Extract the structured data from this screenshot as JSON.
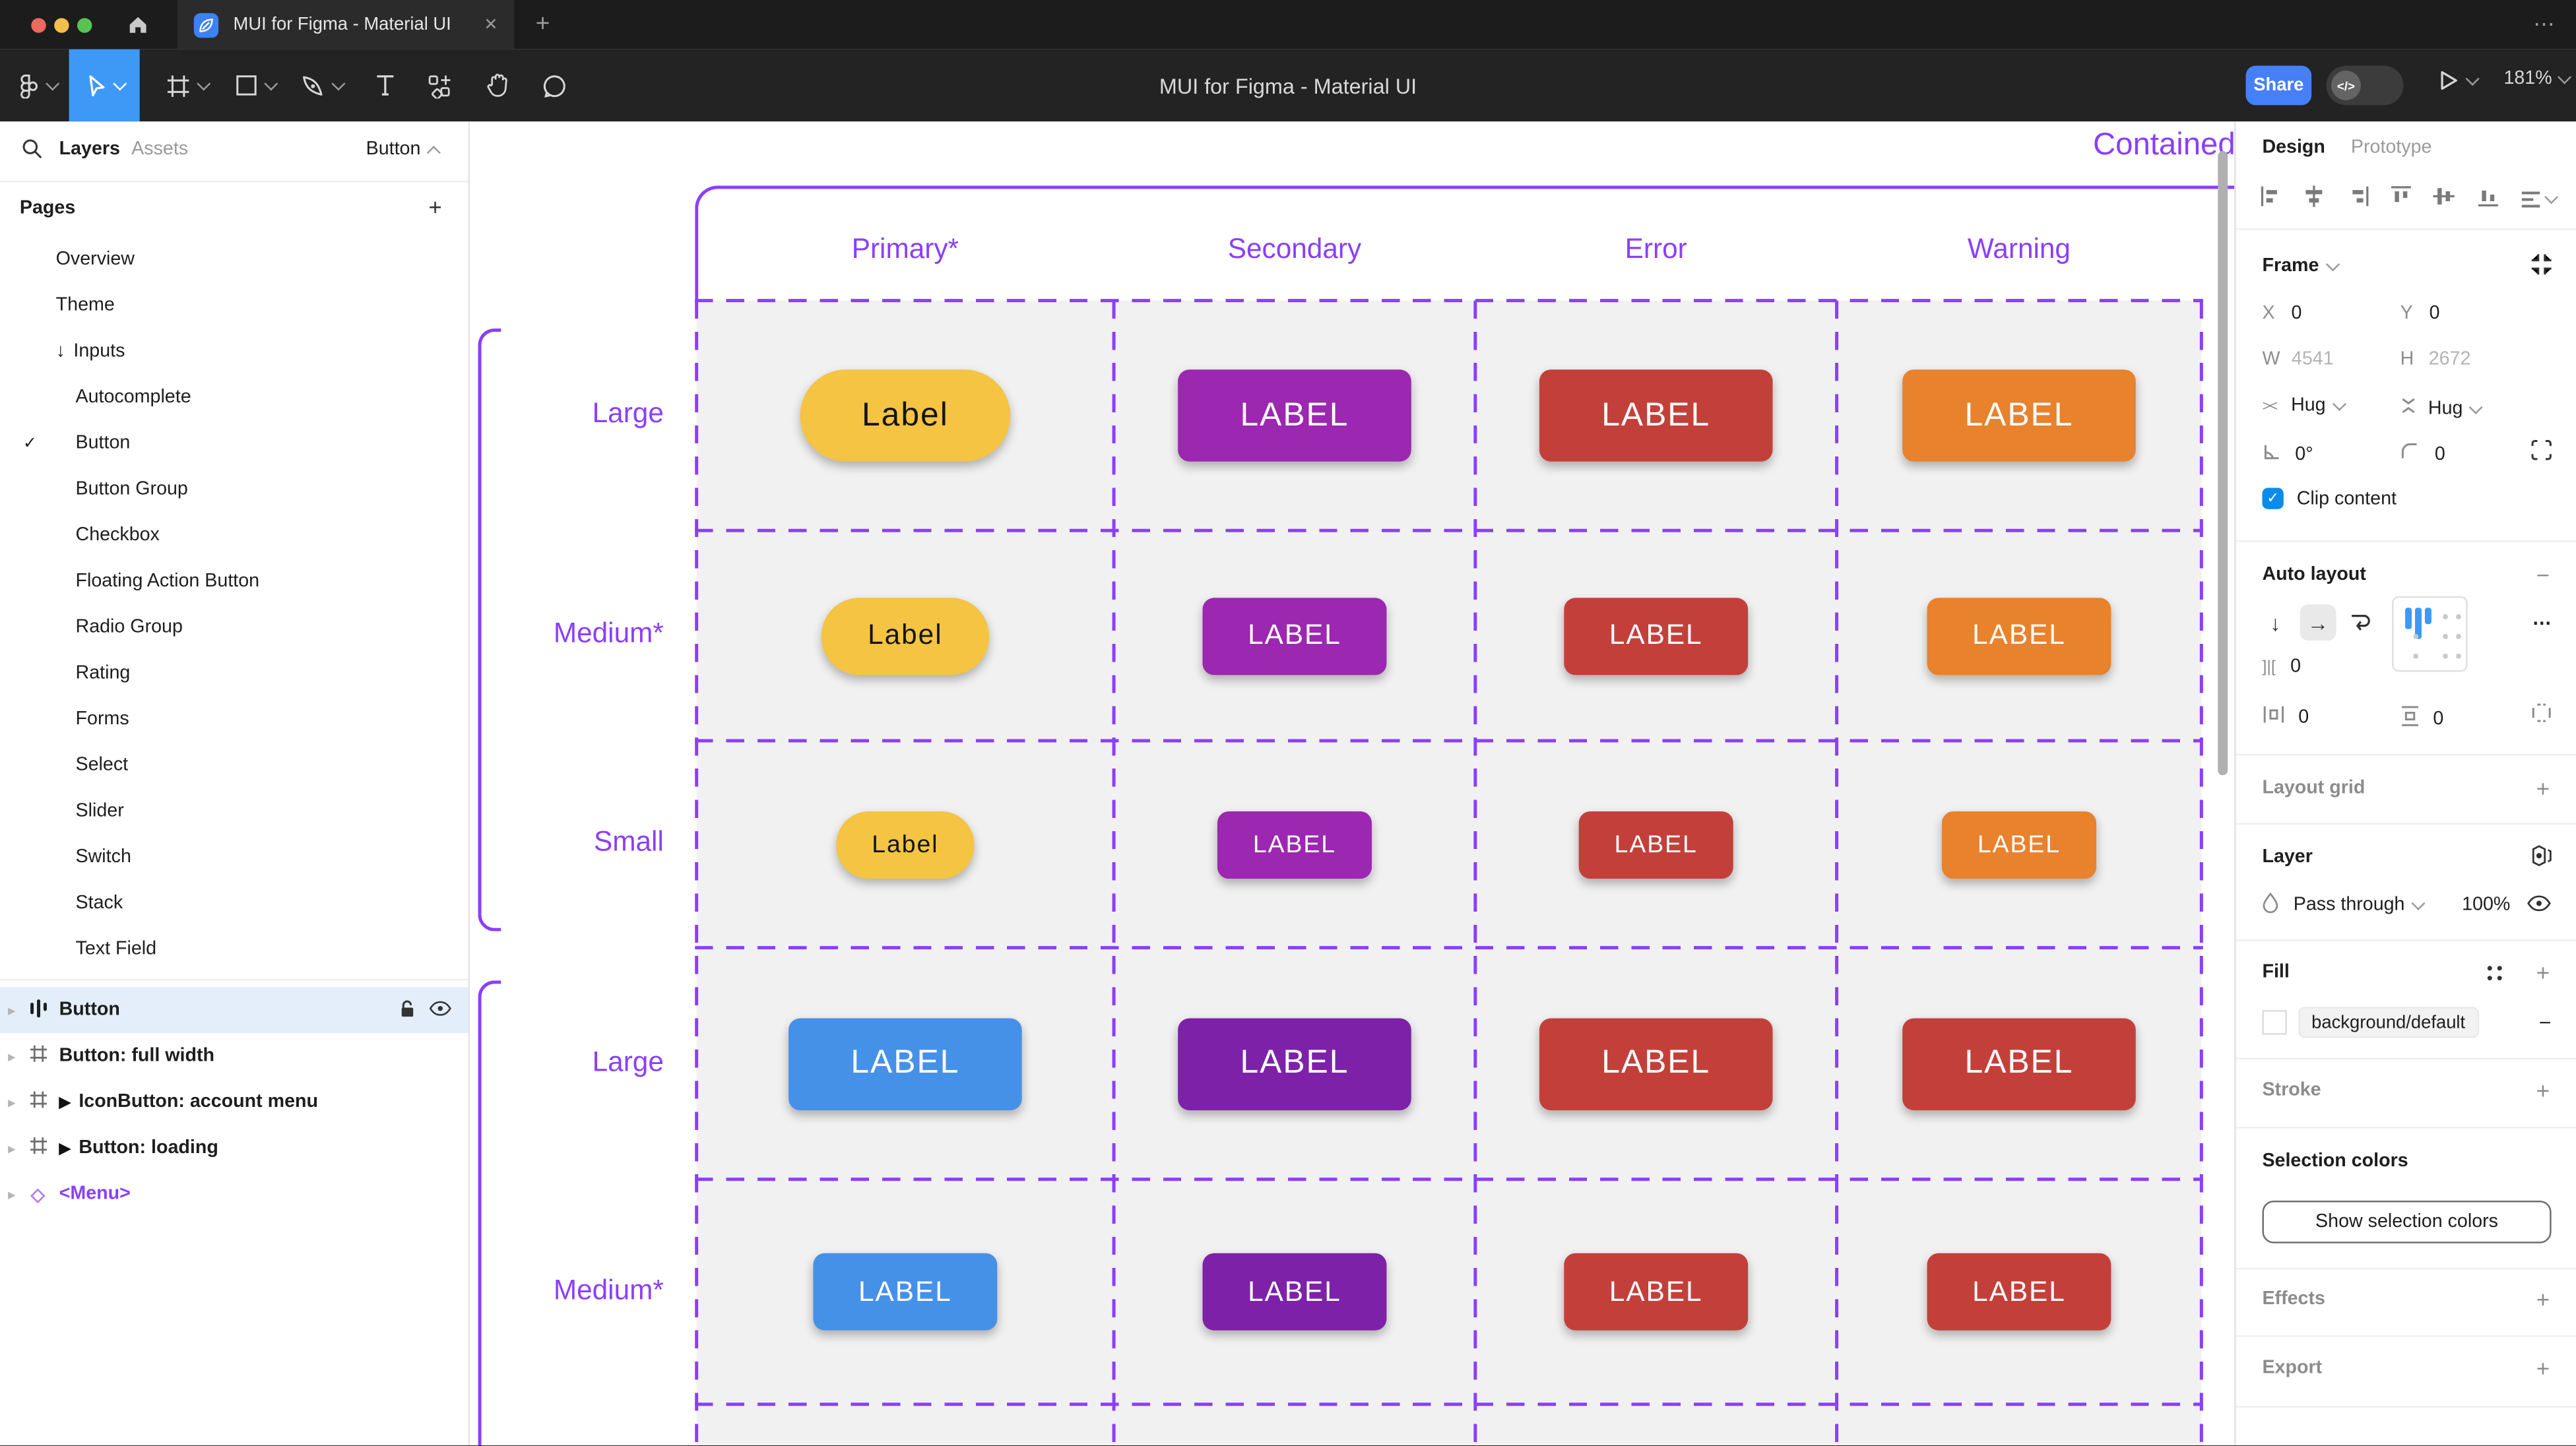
{
  "window": {
    "tab_title": "MUI for Figma - Material UI",
    "close_label": "✕",
    "new_tab_label": "+",
    "overflow_label": "⋯"
  },
  "toolbar": {
    "document_title": "MUI for Figma - Material UI",
    "share_label": "Share",
    "dev_toggle_label": "</>",
    "zoom_label": "181%",
    "tools": [
      "figma-menu",
      "move-tool",
      "frame-tool",
      "shape-tool",
      "pen-tool",
      "text-tool",
      "actions-tool",
      "hand-tool",
      "comment-tool"
    ]
  },
  "sidebar": {
    "tabs": {
      "layers": "Layers",
      "assets": "Assets"
    },
    "page_selector": "Button",
    "pages_header": "Pages",
    "add_page_label": "+",
    "pages": [
      {
        "label": "Overview",
        "level": 1
      },
      {
        "label": "Theme",
        "level": 1
      },
      {
        "label": "Inputs",
        "level": 1,
        "arrow": "↓"
      },
      {
        "label": "Autocomplete",
        "level": 2
      },
      {
        "label": "Button",
        "level": 2,
        "checked": true
      },
      {
        "label": "Button Group",
        "level": 2
      },
      {
        "label": "Checkbox",
        "level": 2
      },
      {
        "label": "Floating Action Button",
        "level": 2
      },
      {
        "label": "Radio Group",
        "level": 2
      },
      {
        "label": "Rating",
        "level": 2
      },
      {
        "label": "Forms",
        "level": 2
      },
      {
        "label": "Select",
        "level": 2
      },
      {
        "label": "Slider",
        "level": 2
      },
      {
        "label": "Switch",
        "level": 2
      },
      {
        "label": "Stack",
        "level": 2
      },
      {
        "label": "Text Field",
        "level": 2
      }
    ],
    "layers": [
      {
        "label": "Button",
        "icon": "autolayout",
        "selected": true
      },
      {
        "label": "Button: full width",
        "icon": "frame"
      },
      {
        "label": "IconButton: account menu",
        "icon": "frame",
        "play": true
      },
      {
        "label": "Button: loading",
        "icon": "frame",
        "play": true
      },
      {
        "label": "<Menu>",
        "icon": "component",
        "purple": true
      }
    ]
  },
  "canvas": {
    "frame_title": "Contained",
    "columns": [
      "Primary*",
      "Secondary",
      "Error",
      "Warning"
    ],
    "rows": [
      {
        "label": "Large",
        "size": "large",
        "buttons": [
          {
            "text": "Label",
            "bg": "#F4C442",
            "fg": "#141414",
            "shape": "pill"
          },
          {
            "text": "LABEL",
            "bg": "#9C27B0",
            "fg": "#FFFFFF"
          },
          {
            "text": "LABEL",
            "bg": "#C3403A",
            "fg": "#FFFFFF"
          },
          {
            "text": "LABEL",
            "bg": "#E8822D",
            "fg": "#FFFFFF"
          }
        ]
      },
      {
        "label": "Medium*",
        "size": "medium",
        "buttons": [
          {
            "text": "Label",
            "bg": "#F4C442",
            "fg": "#141414",
            "shape": "pill"
          },
          {
            "text": "LABEL",
            "bg": "#9C27B0",
            "fg": "#FFFFFF"
          },
          {
            "text": "LABEL",
            "bg": "#C3403A",
            "fg": "#FFFFFF"
          },
          {
            "text": "LABEL",
            "bg": "#E8822D",
            "fg": "#FFFFFF"
          }
        ]
      },
      {
        "label": "Small",
        "size": "small",
        "buttons": [
          {
            "text": "Label",
            "bg": "#F4C442",
            "fg": "#141414",
            "shape": "pill"
          },
          {
            "text": "LABEL",
            "bg": "#9C27B0",
            "fg": "#FFFFFF"
          },
          {
            "text": "LABEL",
            "bg": "#C3403A",
            "fg": "#FFFFFF"
          },
          {
            "text": "LABEL",
            "bg": "#E8822D",
            "fg": "#FFFFFF"
          }
        ]
      },
      {
        "label": "Large",
        "size": "large",
        "buttons": [
          {
            "text": "LABEL",
            "bg": "#4691E8",
            "fg": "#FFFFFF"
          },
          {
            "text": "LABEL",
            "bg": "#7D22A8",
            "fg": "#FFFFFF"
          },
          {
            "text": "LABEL",
            "bg": "#C3403A",
            "fg": "#FFFFFF"
          },
          {
            "text": "LABEL",
            "bg": "#C3403A",
            "fg": "#FFFFFF"
          }
        ]
      },
      {
        "label": "Medium*",
        "size": "medium",
        "buttons": [
          {
            "text": "LABEL",
            "bg": "#4691E8",
            "fg": "#FFFFFF"
          },
          {
            "text": "LABEL",
            "bg": "#7D22A8",
            "fg": "#FFFFFF"
          },
          {
            "text": "LABEL",
            "bg": "#C3403A",
            "fg": "#FFFFFF"
          },
          {
            "text": "LABEL",
            "bg": "#C3403A",
            "fg": "#FFFFFF"
          }
        ]
      }
    ]
  },
  "inspector": {
    "tabs": {
      "design": "Design",
      "prototype": "Prototype"
    },
    "frame": {
      "header": "Frame",
      "x_label": "X",
      "x_value": "0",
      "y_label": "Y",
      "y_value": "0",
      "w_label": "W",
      "w_value": "4541",
      "h_label": "H",
      "h_value": "2672",
      "hug_h": "Hug",
      "hug_v": "Hug",
      "rotation": "0°",
      "radius": "0",
      "clip_label": "Clip content",
      "clip_check": "✓"
    },
    "auto_layout": {
      "header": "Auto layout",
      "gap_value": "0",
      "pad_h_value": "0",
      "pad_v_value": "0",
      "more": "⋯",
      "remove": "−"
    },
    "layout_grid": {
      "header": "Layout grid",
      "add": "+"
    },
    "layer": {
      "header": "Layer",
      "blend_mode": "Pass through",
      "opacity": "100%"
    },
    "fill": {
      "header": "Fill",
      "token": "background/default",
      "remove": "−",
      "add": "+"
    },
    "stroke": {
      "header": "Stroke",
      "add": "+"
    },
    "selection_colors": {
      "header": "Selection colors",
      "button_label": "Show selection colors"
    },
    "effects": {
      "header": "Effects",
      "add": "+"
    },
    "export": {
      "header": "Export",
      "add": "+"
    }
  },
  "colors": {
    "tool_accent": "#3D99F5",
    "share_blue": "#4680F8",
    "figma_purple": "#8A3FFC",
    "checkbox_blue": "#0C8CE9",
    "selected_row": "#E3EEFA",
    "traffic": [
      "#EC695E",
      "#F5BD4C",
      "#57C353"
    ]
  }
}
